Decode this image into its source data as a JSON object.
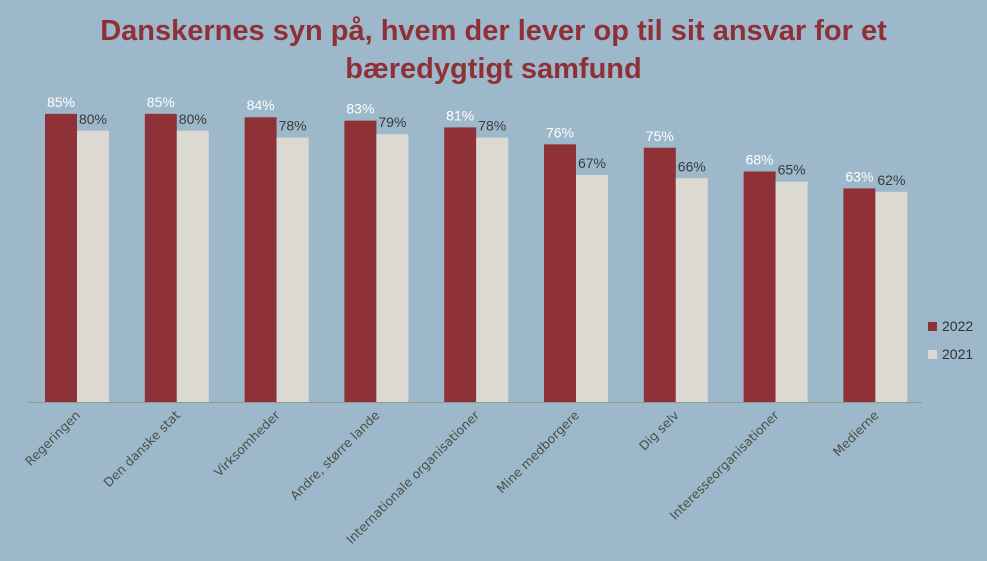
{
  "chart_data": {
    "type": "bar",
    "title_lines": [
      "Danskernes syn på, hvem der lever op til sit ansvar for et",
      "bæredygtigt samfund"
    ],
    "categories": [
      "Regeringen",
      "Den danske stat",
      "Virksomheder",
      "Andre, større lande",
      "Internationale organisationer",
      "Mine medborgere",
      "Dig selv",
      "Interesseorganisationer",
      "Medierne"
    ],
    "series": [
      {
        "name": "2022",
        "values": [
          85,
          85,
          84,
          83,
          81,
          76,
          75,
          68,
          63
        ],
        "color": "#8e3238"
      },
      {
        "name": "2021",
        "values": [
          80,
          80,
          78,
          79,
          78,
          67,
          66,
          65,
          62
        ],
        "color": "#dcd9d3"
      }
    ],
    "value_suffix": "%",
    "xlabel": "",
    "ylabel": "",
    "ylim": [
      0,
      100
    ],
    "grid": false,
    "legend": "right"
  }
}
